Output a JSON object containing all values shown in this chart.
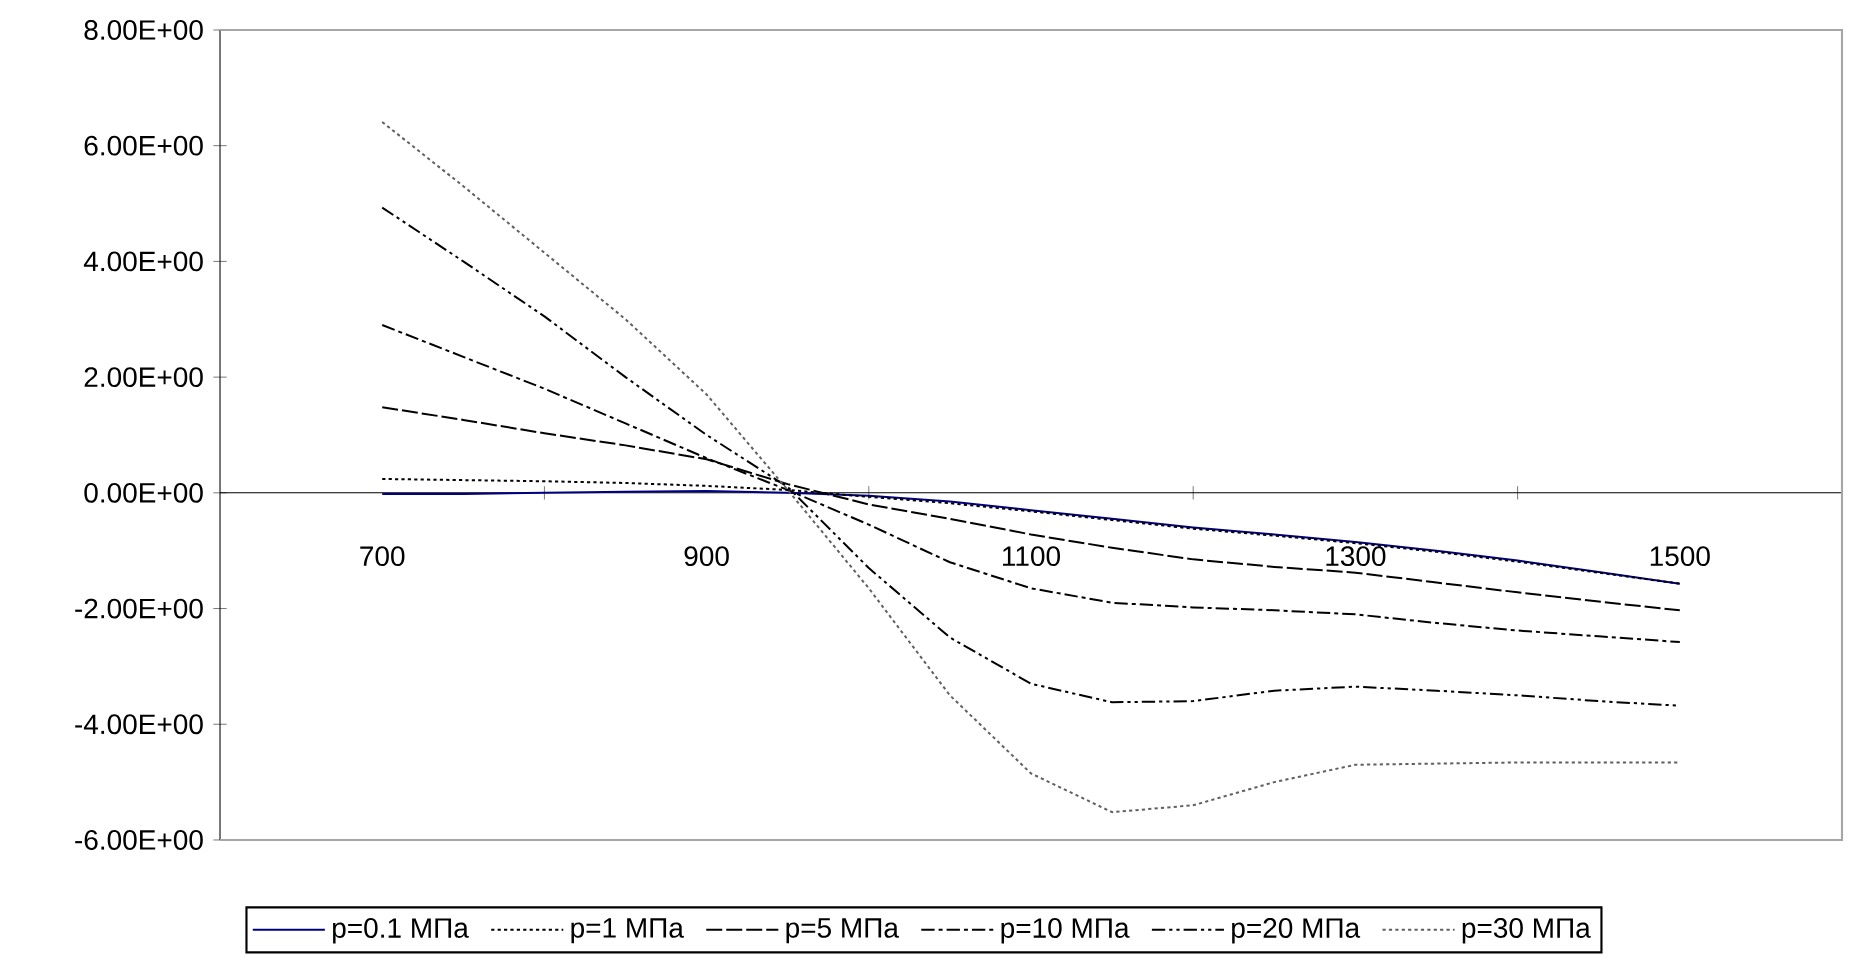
{
  "chart_data": {
    "type": "line",
    "x": [
      700,
      750,
      800,
      850,
      900,
      950,
      1000,
      1050,
      1100,
      1150,
      1200,
      1250,
      1300,
      1350,
      1400,
      1450,
      1500
    ],
    "series": [
      {
        "name": "p=0.1 МПа",
        "color": "#000080",
        "line_style": "solid",
        "values": [
          -0.02,
          -0.02,
          0.0,
          0.02,
          0.03,
          0.0,
          -0.05,
          -0.15,
          -0.3,
          -0.45,
          -0.6,
          -0.72,
          -0.85,
          -1.0,
          -1.17,
          -1.37,
          -1.57
        ]
      },
      {
        "name": "p=1 МПа",
        "color": "#000000",
        "line_style": "dotted",
        "values": [
          0.24,
          0.22,
          0.2,
          0.17,
          0.12,
          0.05,
          -0.07,
          -0.18,
          -0.32,
          -0.47,
          -0.62,
          -0.74,
          -0.87,
          -1.02,
          -1.19,
          -1.38,
          -1.57
        ]
      },
      {
        "name": "p=5 МПа",
        "color": "#000000",
        "line_style": "dashed",
        "values": [
          1.48,
          1.26,
          1.03,
          0.82,
          0.58,
          0.15,
          -0.2,
          -0.45,
          -0.72,
          -0.95,
          -1.15,
          -1.28,
          -1.38,
          -1.55,
          -1.72,
          -1.88,
          -2.03
        ]
      },
      {
        "name": "p=10 МПа",
        "color": "#000000",
        "line_style": "dashdot",
        "values": [
          2.9,
          2.35,
          1.8,
          1.2,
          0.6,
          0.05,
          -0.55,
          -1.2,
          -1.65,
          -1.9,
          -1.98,
          -2.03,
          -2.1,
          -2.25,
          -2.38,
          -2.48,
          -2.58
        ]
      },
      {
        "name": "p=20 МПа",
        "color": "#000000",
        "line_style": "dashdotdot",
        "values": [
          4.93,
          4.0,
          3.05,
          2.0,
          1.0,
          0.1,
          -1.3,
          -2.5,
          -3.3,
          -3.62,
          -3.6,
          -3.42,
          -3.35,
          -3.42,
          -3.5,
          -3.6,
          -3.68
        ]
      },
      {
        "name": "p=30 МПа",
        "color": "#606060",
        "line_style": "dotted",
        "values": [
          6.41,
          5.3,
          4.15,
          3.0,
          1.7,
          0.05,
          -1.65,
          -3.5,
          -4.85,
          -5.52,
          -5.4,
          -5.0,
          -4.7,
          -4.68,
          -4.66,
          -4.66,
          -4.66
        ]
      }
    ],
    "xlim": [
      600,
      1600
    ],
    "xticks": [
      {
        "value": 700,
        "label": "700"
      },
      {
        "value": 800,
        "label": null
      },
      {
        "value": 900,
        "label": "900"
      },
      {
        "value": 1000,
        "label": null
      },
      {
        "value": 1100,
        "label": "1100"
      },
      {
        "value": 1200,
        "label": null
      },
      {
        "value": 1300,
        "label": "1300"
      },
      {
        "value": 1400,
        "label": null
      },
      {
        "value": 1500,
        "label": "1500"
      }
    ],
    "ylim": [
      -6,
      8
    ],
    "yticks": [
      {
        "value": -6,
        "label": "-6.00E+00"
      },
      {
        "value": -4,
        "label": "-4.00E+00"
      },
      {
        "value": -2,
        "label": "-2.00E+00"
      },
      {
        "value": 0,
        "label": "0.00E+00"
      },
      {
        "value": 2,
        "label": "2.00E+00"
      },
      {
        "value": 4,
        "label": "4.00E+00"
      },
      {
        "value": 6,
        "label": "6.00E+00"
      },
      {
        "value": 8,
        "label": "8.00E+00"
      }
    ],
    "grid": false,
    "legend": "bottom",
    "marker": "none"
  }
}
